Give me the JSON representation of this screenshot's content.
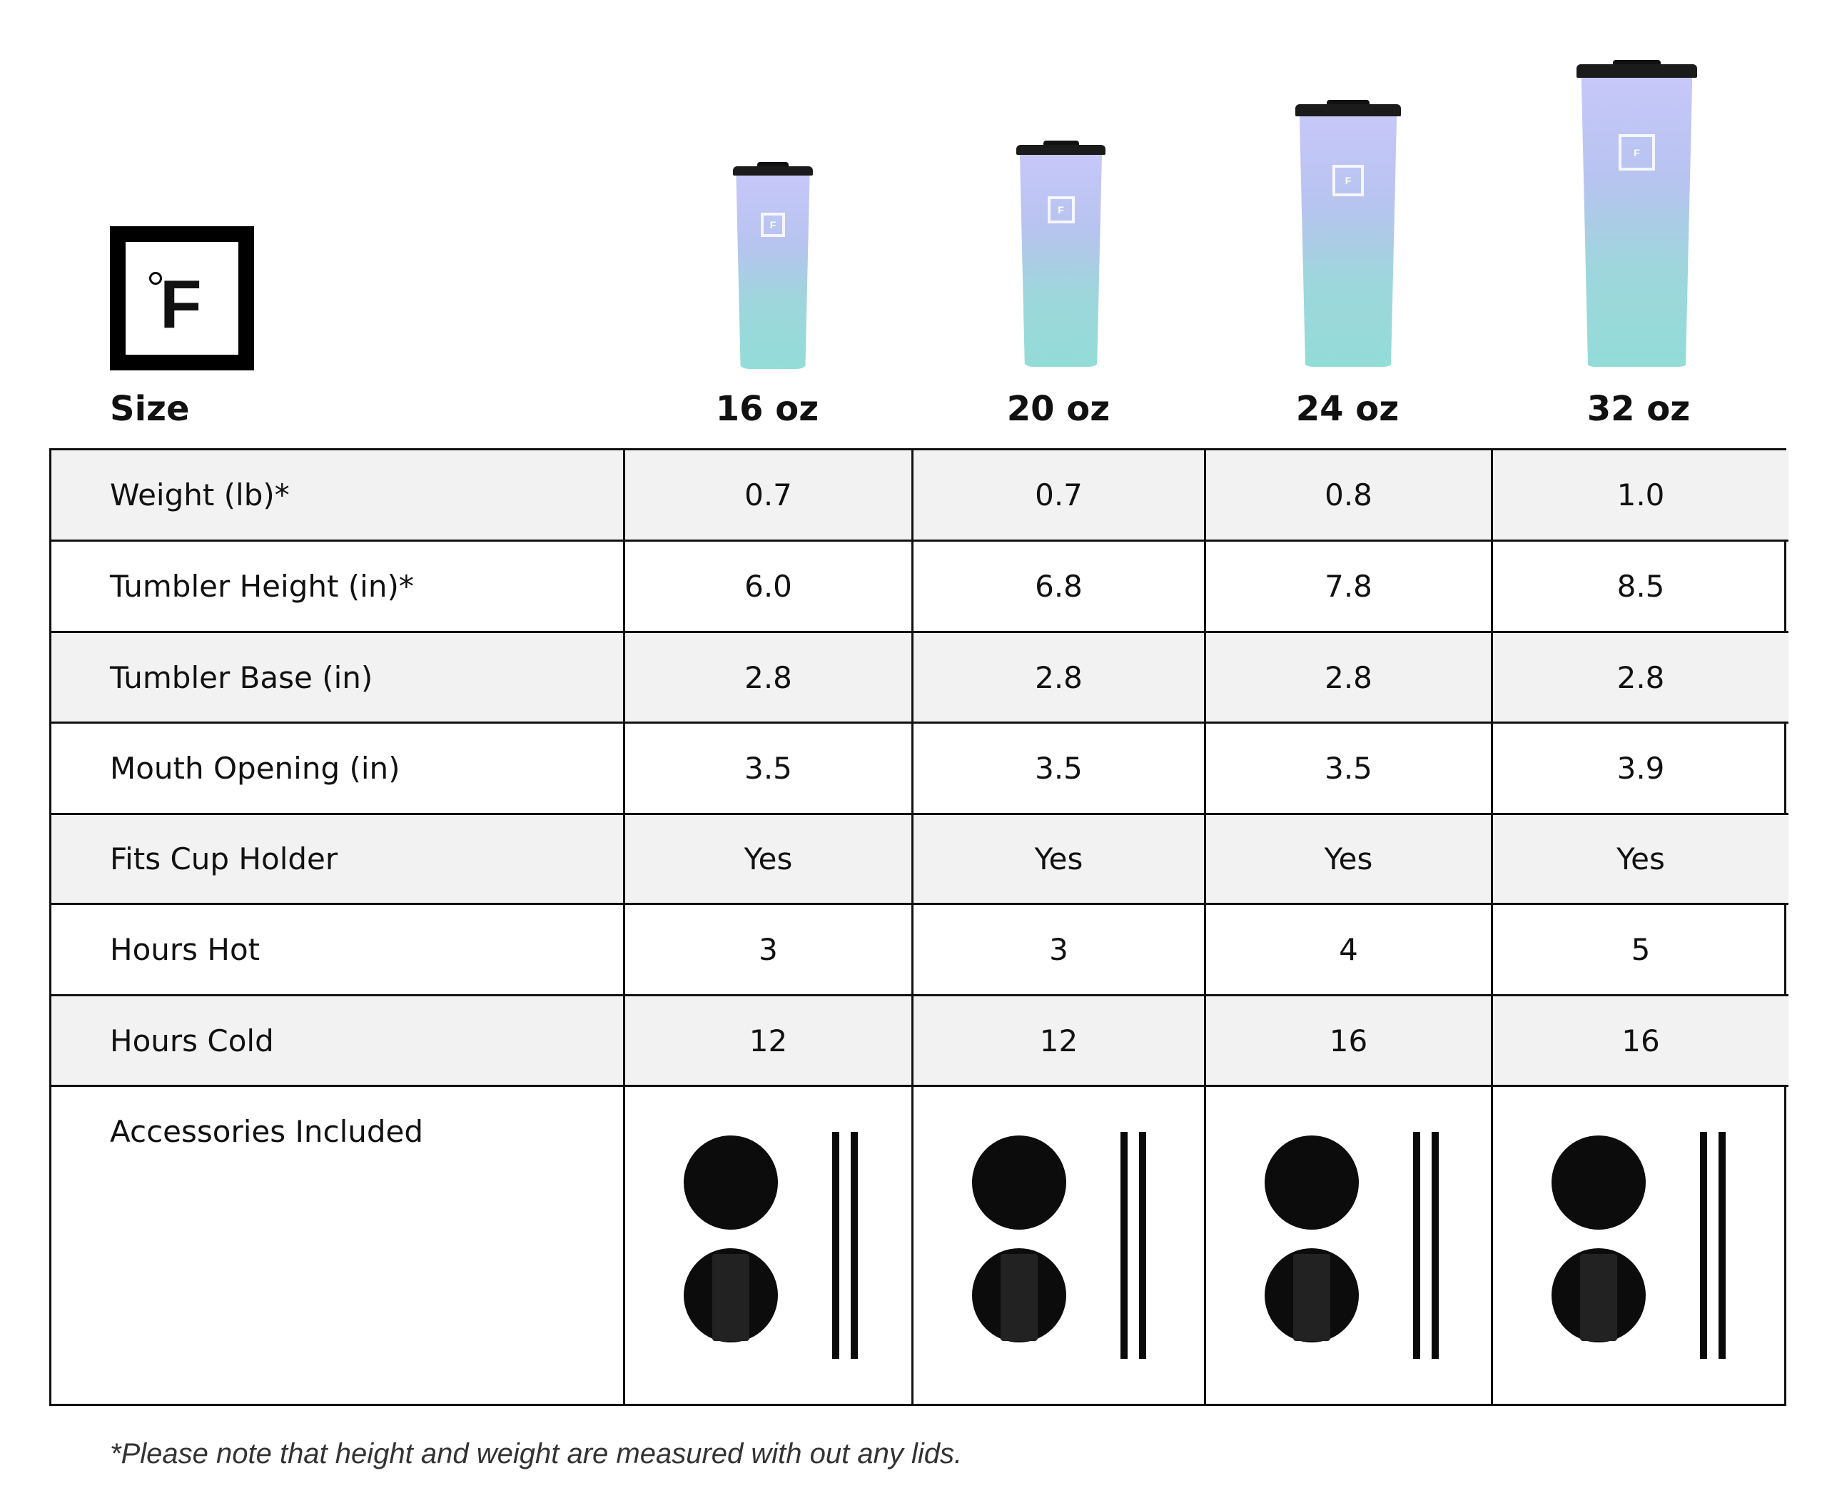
{
  "brand_logo": {
    "text": "°F"
  },
  "header": {
    "size_label": "Size",
    "sizes": [
      "16 oz",
      "20 oz",
      "24 oz",
      "32 oz"
    ]
  },
  "rows": [
    {
      "label": "Weight (lb)*",
      "values": [
        "0.7",
        "0.7",
        "0.8",
        "1.0"
      ]
    },
    {
      "label": "Tumbler Height (in)*",
      "values": [
        "6.0",
        "6.8",
        "7.8",
        "8.5"
      ]
    },
    {
      "label": "Tumbler Base (in)",
      "values": [
        "2.8",
        "2.8",
        "2.8",
        "2.8"
      ]
    },
    {
      "label": "Mouth Opening (in)",
      "values": [
        "3.5",
        "3.5",
        "3.5",
        "3.9"
      ]
    },
    {
      "label": "Fits Cup Holder",
      "values": [
        "Yes",
        "Yes",
        "Yes",
        "Yes"
      ]
    },
    {
      "label": "Hours Hot",
      "values": [
        "3",
        "3",
        "4",
        "5"
      ]
    },
    {
      "label": "Hours Cold",
      "values": [
        "12",
        "12",
        "16",
        "16"
      ]
    }
  ],
  "accessories": {
    "label": "Accessories Included",
    "items": [
      "slide-lid-icon",
      "flip-lid-icon",
      "straw-icon",
      "straw-icon"
    ]
  },
  "footnote": "*Please note that height and weight are measured with out any lids.",
  "colors": {
    "tumbler_top": "#c6c8f8",
    "tumbler_bottom": "#93dcd8",
    "row_stripe": "#f2f2f2",
    "border": "#111111"
  }
}
